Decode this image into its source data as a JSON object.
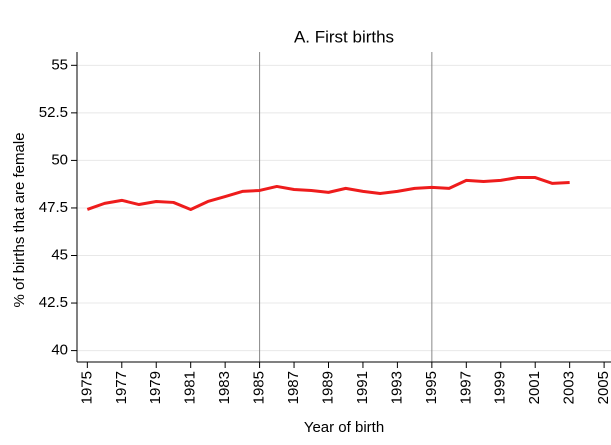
{
  "chart_data": {
    "type": "line",
    "title": "A. First births",
    "xlabel": "Year of birth",
    "ylabel": "% of births that are female",
    "x": [
      1975,
      1976,
      1977,
      1978,
      1979,
      1980,
      1981,
      1982,
      1983,
      1984,
      1985,
      1986,
      1987,
      1988,
      1989,
      1990,
      1991,
      1992,
      1993,
      1994,
      1995,
      1996,
      1997,
      1998,
      1999,
      2000,
      2001,
      2002,
      2003
    ],
    "series": [
      {
        "name": "First births",
        "color": "#ee1c1c",
        "values": [
          47.42,
          47.74,
          47.9,
          47.68,
          47.84,
          47.79,
          47.42,
          47.84,
          48.1,
          48.37,
          48.42,
          48.63,
          48.47,
          48.42,
          48.32,
          48.53,
          48.37,
          48.26,
          48.37,
          48.53,
          48.58,
          48.53,
          48.95,
          48.89,
          48.95,
          49.1,
          49.1,
          48.79,
          48.84
        ]
      }
    ],
    "xlim": [
      1974.4,
      2005.4
    ],
    "ylim": [
      39.4,
      55.7
    ],
    "xticks": [
      1975,
      1977,
      1979,
      1981,
      1983,
      1985,
      1987,
      1989,
      1991,
      1993,
      1995,
      1997,
      1999,
      2001,
      2003,
      2005
    ],
    "yticks": [
      40,
      42.5,
      45,
      47.5,
      50,
      52.5,
      55
    ],
    "vlines": [
      1985,
      1995
    ],
    "grid": true
  }
}
